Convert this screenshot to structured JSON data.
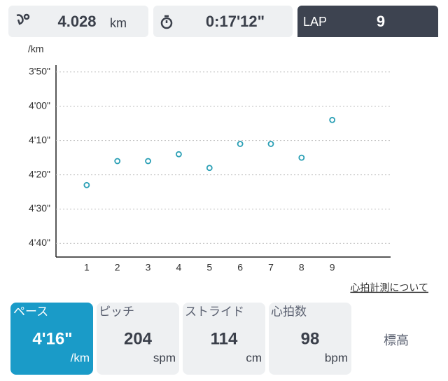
{
  "header": {
    "distance": "4.028",
    "distance_unit": "km",
    "time": "0:17'12\"",
    "lap_label": "LAP",
    "lap": "9"
  },
  "chart_data": {
    "type": "line",
    "y_label": "/km",
    "x": [
      1,
      2,
      3,
      4,
      5,
      6,
      7,
      8,
      9
    ],
    "values": [
      263,
      256,
      256,
      254,
      258,
      251,
      251,
      255,
      244
    ],
    "color": "#2a9fb5",
    "xlim": [
      0,
      10.9
    ],
    "xticks": [
      1,
      2,
      3,
      4,
      5,
      6,
      7,
      8,
      9
    ],
    "ylim": [
      228,
      284
    ],
    "y_reversed": true,
    "yticks": [
      {
        "value": 230,
        "label": "3'50\""
      },
      {
        "value": 240,
        "label": "4'00\""
      },
      {
        "value": 250,
        "label": "4'10\""
      },
      {
        "value": 260,
        "label": "4'20\""
      },
      {
        "value": 270,
        "label": "4'30\""
      },
      {
        "value": 280,
        "label": "4'40\""
      }
    ],
    "grid": true
  },
  "link": "心拍計測について",
  "tabs": [
    {
      "label": "ペース",
      "value": "4'16\"",
      "unit": "/km"
    },
    {
      "label": "ピッチ",
      "value": "204",
      "unit": "spm"
    },
    {
      "label": "ストライド",
      "value": "114",
      "unit": "cm"
    },
    {
      "label": "心拍数",
      "value": "98",
      "unit": "bpm"
    },
    {
      "label": "標高"
    }
  ]
}
